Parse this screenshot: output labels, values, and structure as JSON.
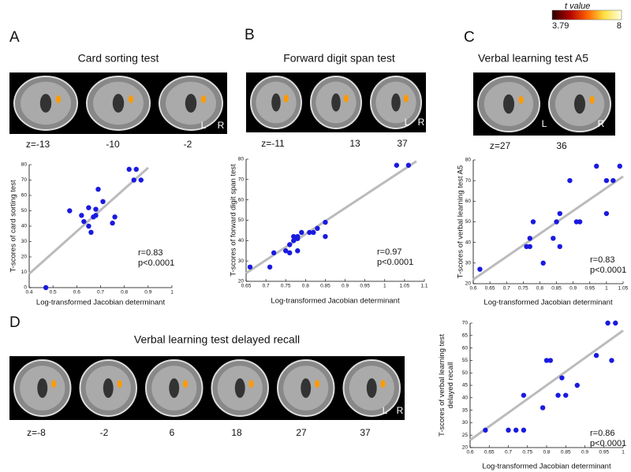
{
  "panels": [
    {
      "letter": "A",
      "title": "Card sorting test",
      "slices": [
        "z=-13",
        "-10",
        "-2"
      ],
      "orientation": [
        "L",
        "R"
      ]
    },
    {
      "letter": "B",
      "title": "Forward digit span test",
      "slices": [
        "z=-11",
        "13",
        "37"
      ],
      "orientation": [
        "L",
        "R"
      ]
    },
    {
      "letter": "C",
      "title": "Verbal learning test A5",
      "slices": [
        "z=27",
        "36"
      ],
      "orientation": [
        "L",
        "R"
      ]
    },
    {
      "letter": "D",
      "title": "Verbal learning test delayed recall",
      "slices": [
        "z=-8",
        "-2",
        "6",
        "18",
        "27",
        "37"
      ],
      "orientation": [
        "L",
        "R"
      ]
    }
  ],
  "colorbar": {
    "title": "t value",
    "min": 3.79,
    "max": 8,
    "colors": [
      "#2a0000",
      "#b00000",
      "#ff6000",
      "#ffe040",
      "#ffffe0"
    ]
  },
  "chart_data": [
    {
      "type": "scatter",
      "xlabel": "Log-transformed Jacobian determinant",
      "ylabel": [
        "T-scores of card sorting test"
      ],
      "x": [
        0.47,
        0.57,
        0.62,
        0.63,
        0.65,
        0.65,
        0.66,
        0.67,
        0.68,
        0.68,
        0.69,
        0.71,
        0.75,
        0.76,
        0.82,
        0.85,
        0.84,
        0.87
      ],
      "y": [
        0,
        50,
        47,
        43,
        52,
        40,
        36,
        46,
        47,
        51,
        64,
        56,
        42,
        46,
        77,
        77,
        70,
        70
      ],
      "color": "#1a1ae0",
      "trendline": {
        "x": [
          0.4,
          0.9
        ],
        "y": [
          9,
          78
        ],
        "color": "#bbbbbb"
      },
      "xlim": [
        0.4,
        1
      ],
      "xticks": [
        0.4,
        0.5,
        0.6,
        0.7,
        0.8,
        0.9,
        1
      ],
      "ylim": [
        0,
        80
      ],
      "yticks": [
        0,
        10,
        20,
        30,
        40,
        50,
        60,
        70,
        80
      ],
      "annotations": [
        "r=0.83",
        "p<0.0001"
      ]
    },
    {
      "type": "scatter",
      "xlabel": "Log-transformed Jacobian determinant",
      "ylabel": [
        "T-scores of forward digit span test"
      ],
      "x": [
        0.66,
        0.71,
        0.72,
        0.75,
        0.76,
        0.76,
        0.77,
        0.77,
        0.78,
        0.78,
        0.78,
        0.79,
        0.81,
        0.82,
        0.83,
        0.85,
        0.85,
        1.03,
        1.06
      ],
      "y": [
        27,
        27,
        34,
        35,
        34,
        38,
        42,
        40,
        41,
        42,
        35,
        44,
        44,
        44,
        46,
        49,
        42,
        77,
        77
      ],
      "color": "#1a1ae0",
      "trendline": {
        "x": [
          0.65,
          1.08
        ],
        "y": [
          24,
          79
        ],
        "color": "#bbbbbb"
      },
      "xlim": [
        0.65,
        1.1
      ],
      "xticks": [
        0.65,
        0.7,
        0.75,
        0.8,
        0.85,
        0.9,
        0.95,
        1,
        1.05,
        1.1
      ],
      "ylim": [
        20,
        80
      ],
      "yticks": [
        20,
        30,
        40,
        50,
        60,
        70,
        80
      ],
      "annotations": [
        "r=0.97",
        "p<0.0001"
      ]
    },
    {
      "type": "scatter",
      "xlabel": "Log-transformed Jacobian determinant",
      "ylabel": [
        "T-scores of verbal learning test A5"
      ],
      "x": [
        0.62,
        0.76,
        0.77,
        0.77,
        0.78,
        0.81,
        0.84,
        0.85,
        0.86,
        0.86,
        0.89,
        0.91,
        0.92,
        0.97,
        1.0,
        1.0,
        1.02,
        1.04
      ],
      "y": [
        27,
        38,
        38,
        42,
        50,
        30,
        42,
        50,
        54,
        38,
        70,
        50,
        50,
        77,
        70,
        54,
        70,
        77
      ],
      "color": "#1a1ae0",
      "trendline": {
        "x": [
          0.6,
          1.05
        ],
        "y": [
          22,
          72
        ],
        "color": "#bbbbbb"
      },
      "xlim": [
        0.6,
        1.05
      ],
      "xticks": [
        0.6,
        0.65,
        0.7,
        0.75,
        0.8,
        0.85,
        0.9,
        0.95,
        1,
        1.05
      ],
      "ylim": [
        20,
        80
      ],
      "yticks": [
        20,
        30,
        40,
        50,
        60,
        70,
        80
      ],
      "annotations": [
        "r=0.83",
        "p<0.0001"
      ]
    },
    {
      "type": "scatter",
      "xlabel": "Log-transformed Jacobian determinant",
      "ylabel": [
        "T-scores of verbal learning test",
        "delayed recall"
      ],
      "x": [
        0.64,
        0.7,
        0.72,
        0.74,
        0.74,
        0.79,
        0.8,
        0.81,
        0.83,
        0.84,
        0.85,
        0.88,
        0.93,
        0.96,
        0.97,
        0.98
      ],
      "y": [
        27,
        27,
        27,
        27,
        41,
        36,
        55,
        55,
        41,
        48,
        41,
        45,
        57,
        70,
        55,
        70
      ],
      "color": "#1a1ae0",
      "trendline": {
        "x": [
          0.6,
          1
        ],
        "y": [
          23,
          67
        ],
        "color": "#bbbbbb"
      },
      "xlim": [
        0.6,
        1
      ],
      "xticks": [
        0.6,
        0.65,
        0.7,
        0.75,
        0.8,
        0.85,
        0.9,
        0.95,
        1
      ],
      "ylim": [
        20,
        70
      ],
      "yticks": [
        20,
        25,
        30,
        35,
        40,
        45,
        50,
        55,
        60,
        65,
        70
      ],
      "annotations": [
        "r=0.86",
        "p<0.0001"
      ]
    }
  ]
}
